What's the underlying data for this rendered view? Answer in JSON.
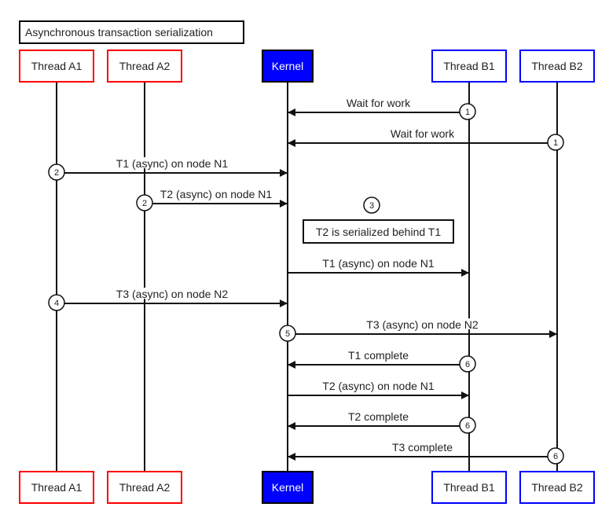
{
  "title": "Asynchronous transaction serialization",
  "colors": {
    "thread_a": "#ff0000",
    "thread_b": "#0000ff",
    "kernel_fill": "#0000ff",
    "kernel_text": "#ffffff",
    "line": "#111111"
  },
  "participants": [
    {
      "id": "A1",
      "label": "Thread A1",
      "kind": "thread_a"
    },
    {
      "id": "A2",
      "label": "Thread A2",
      "kind": "thread_a"
    },
    {
      "id": "K",
      "label": "Kernel",
      "kind": "kernel"
    },
    {
      "id": "B1",
      "label": "Thread B1",
      "kind": "thread_b"
    },
    {
      "id": "B2",
      "label": "Thread B2",
      "kind": "thread_b"
    }
  ],
  "messages": [
    {
      "from": "B1",
      "to": "K",
      "label": "Wait for work",
      "step": "1",
      "step_at": "from"
    },
    {
      "from": "B2",
      "to": "K",
      "label": "Wait for work",
      "step": "1",
      "step_at": "from"
    },
    {
      "from": "A1",
      "to": "K",
      "label": "T1 (async) on node N1",
      "step": "2",
      "step_at": "from"
    },
    {
      "from": "A2",
      "to": "K",
      "label": "T2 (async) on node N1",
      "step": "2",
      "step_at": "from"
    },
    {
      "note": "T2 is serialized behind T1",
      "step": "3"
    },
    {
      "from": "K",
      "to": "B1",
      "label": "T1 (async) on node N1"
    },
    {
      "from": "A1",
      "to": "K",
      "label": "T3 (async) on node N2",
      "step": "4",
      "step_at": "from"
    },
    {
      "from": "K",
      "to": "B2",
      "label": "T3 (async) on node N2",
      "step": "5",
      "step_at": "from"
    },
    {
      "from": "B1",
      "to": "K",
      "label": "T1 complete",
      "step": "6",
      "step_at": "from"
    },
    {
      "from": "K",
      "to": "B1",
      "label": "T2 (async) on node N1"
    },
    {
      "from": "B1",
      "to": "K",
      "label": "T2 complete",
      "step": "6",
      "step_at": "from"
    },
    {
      "from": "B2",
      "to": "K",
      "label": "T3 complete",
      "step": "6",
      "step_at": "from"
    }
  ]
}
